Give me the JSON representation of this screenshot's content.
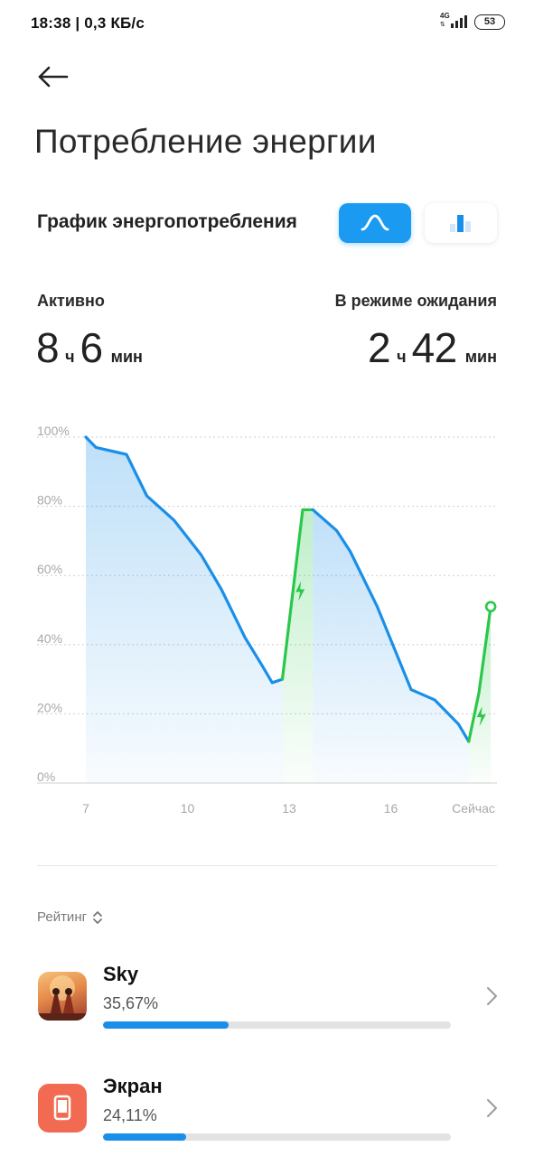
{
  "status_bar": {
    "time": "18:38 | 0,3 КБ/с",
    "network": "4G",
    "battery": "53"
  },
  "page": {
    "title": "Потребление энергии"
  },
  "graph_section": {
    "label": "График энергопотребления",
    "toggle_line_icon": "line-chart-icon",
    "toggle_bar_icon": "bar-chart-icon",
    "selected_view": "line"
  },
  "stats": {
    "active_label": "Активно",
    "active_hours": "8",
    "active_hours_unit": "ч",
    "active_minutes": "6",
    "active_minutes_unit": "мин",
    "standby_label": "В режиме ожидания",
    "standby_hours": "2",
    "standby_hours_unit": "ч",
    "standby_minutes": "42",
    "standby_minutes_unit": "мин"
  },
  "chart_data": {
    "type": "line",
    "title": "",
    "xlabel": "",
    "ylabel": "",
    "ylim": [
      0,
      100
    ],
    "xlim": [
      7,
      19
    ],
    "y_ticks": [
      "0%",
      "20%",
      "40%",
      "60%",
      "80%",
      "100%"
    ],
    "x_ticks": [
      {
        "x": 7,
        "label": "7"
      },
      {
        "x": 10,
        "label": "10"
      },
      {
        "x": 13,
        "label": "13"
      },
      {
        "x": 16,
        "label": "16"
      },
      {
        "x": 19,
        "label": "Сейчас"
      }
    ],
    "grid": true,
    "colors": {
      "discharge": "#1a8fe8",
      "charge": "#2ac84a",
      "grid": "#cfcfcf",
      "tick": "#a8a8a8"
    },
    "series": [
      {
        "kind": "discharge",
        "points": [
          [
            7.0,
            100
          ],
          [
            7.3,
            97
          ],
          [
            8.2,
            95
          ],
          [
            8.8,
            83
          ],
          [
            9.6,
            76
          ],
          [
            10.4,
            66
          ],
          [
            11.0,
            56
          ],
          [
            11.7,
            42
          ],
          [
            12.2,
            34
          ],
          [
            12.5,
            29
          ],
          [
            12.8,
            30
          ]
        ]
      },
      {
        "kind": "charge",
        "points": [
          [
            12.8,
            30
          ],
          [
            13.4,
            79
          ],
          [
            13.7,
            79
          ]
        ]
      },
      {
        "kind": "discharge",
        "points": [
          [
            13.7,
            79
          ],
          [
            14.4,
            73
          ],
          [
            14.8,
            67
          ],
          [
            15.6,
            51
          ],
          [
            16.6,
            27
          ],
          [
            17.3,
            24
          ],
          [
            18.0,
            17
          ],
          [
            18.3,
            12
          ]
        ]
      },
      {
        "kind": "charge",
        "points": [
          [
            18.3,
            12
          ],
          [
            18.6,
            26
          ],
          [
            18.95,
            51
          ]
        ]
      }
    ],
    "current_point": [
      18.95,
      51
    ]
  },
  "ranking": {
    "label": "Рейтинг",
    "sort_icon": "sort-updown-icon",
    "items": [
      {
        "name": "Sky",
        "percent": "35,67%",
        "value": 35.67,
        "bar_fraction": 0.36,
        "icon": "sky-game-icon"
      },
      {
        "name": "Экран",
        "percent": "24,11%",
        "value": 24.11,
        "bar_fraction": 0.24,
        "icon": "screen-icon",
        "icon_color": "#f26a52"
      }
    ]
  }
}
